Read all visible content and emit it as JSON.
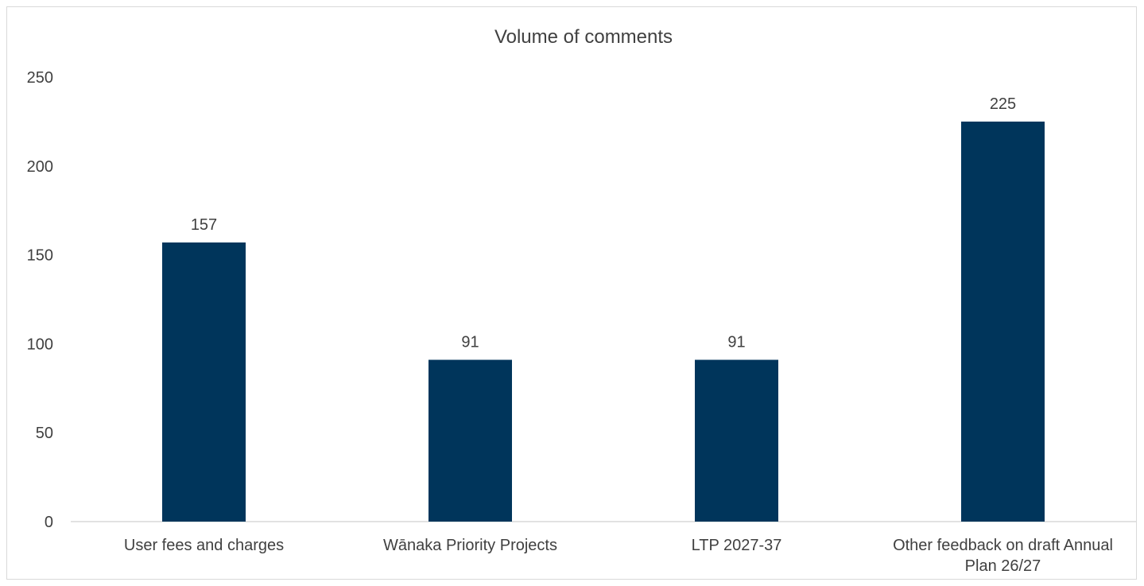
{
  "chart_data": {
    "type": "bar",
    "title": "Volume of comments",
    "xlabel": "",
    "ylabel": "",
    "categories": [
      [
        "User fees and charges"
      ],
      [
        "Wānaka Priority Projects"
      ],
      [
        "LTP 2027-37"
      ],
      [
        "Other feedback on draft Annual",
        "Plan 26/27"
      ]
    ],
    "values": [
      157,
      91,
      91,
      225
    ],
    "data_labels": [
      "157",
      "91",
      "91",
      "225"
    ],
    "ylim": [
      0,
      250
    ],
    "yticks": [
      0,
      50,
      100,
      150,
      200,
      250
    ],
    "grid": false,
    "legend": "none",
    "colors": {
      "bar": "#00355b",
      "axis": "#d9d9d9",
      "text": "#404040"
    }
  }
}
